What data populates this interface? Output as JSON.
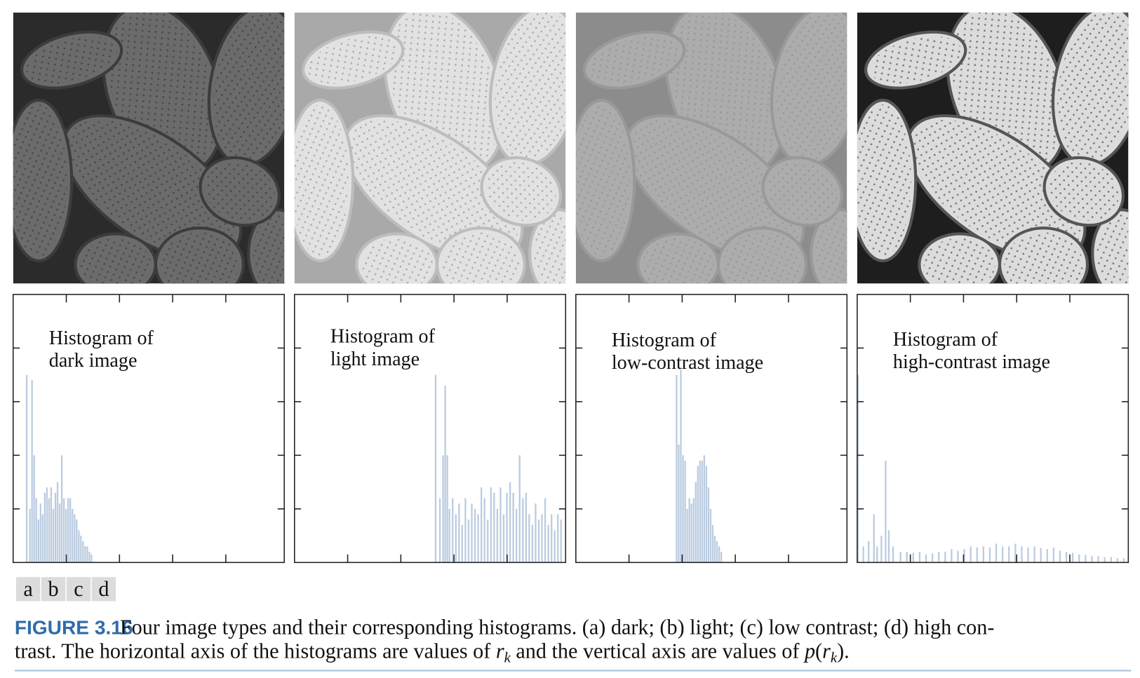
{
  "figure": {
    "panels": [
      {
        "label": "a",
        "title_lines": [
          "Histogram of",
          "dark image"
        ],
        "histogram": {
          "type": "bar",
          "color": "#b4c7dd",
          "xlim": [
            0,
            255
          ],
          "xticks": [
            50,
            100,
            150,
            200
          ],
          "ylim": [
            0,
            5
          ],
          "yticks": [
            1,
            2,
            3,
            4
          ],
          "x": [
            12,
            15,
            17,
            19,
            21,
            23,
            25,
            27,
            29,
            31,
            33,
            35,
            37,
            39,
            41,
            43,
            45,
            47,
            49,
            51,
            53,
            55,
            57,
            59,
            61,
            63,
            65,
            67,
            69,
            71,
            73
          ],
          "values": [
            3.5,
            1.0,
            3.4,
            2.0,
            1.2,
            0.8,
            1.1,
            0.9,
            1.3,
            1.4,
            1.2,
            1.4,
            1.0,
            1.3,
            1.5,
            1.1,
            2.0,
            1.2,
            1.0,
            1.2,
            1.2,
            1.0,
            0.9,
            0.8,
            0.6,
            0.5,
            0.4,
            0.3,
            0.3,
            0.2,
            0.15
          ]
        }
      },
      {
        "label": "b",
        "title_lines": [
          "Histogram of",
          "light image"
        ],
        "histogram": {
          "type": "bar",
          "color": "#b4c7dd",
          "xlim": [
            0,
            255
          ],
          "xticks": [
            50,
            100,
            150,
            200
          ],
          "ylim": [
            0,
            5
          ],
          "yticks": [
            1,
            2,
            3,
            4
          ],
          "x": [
            132,
            136,
            139,
            141,
            143,
            145,
            148,
            151,
            154,
            157,
            160,
            163,
            166,
            169,
            172,
            175,
            178,
            181,
            184,
            187,
            190,
            193,
            196,
            199,
            202,
            205,
            208,
            211,
            214,
            217,
            220,
            223,
            226,
            229,
            232,
            235,
            238,
            241,
            244,
            247,
            250
          ],
          "values": [
            3.5,
            1.2,
            2.0,
            3.3,
            2.0,
            1.0,
            1.2,
            0.9,
            1.1,
            0.7,
            1.2,
            0.8,
            1.1,
            1.0,
            0.9,
            1.4,
            1.2,
            0.8,
            1.4,
            1.3,
            1.0,
            1.4,
            0.9,
            1.3,
            1.5,
            1.3,
            1.0,
            2.0,
            1.2,
            1.3,
            0.9,
            0.7,
            1.1,
            0.8,
            0.9,
            1.2,
            0.7,
            0.9,
            0.6,
            0.9,
            0.8
          ]
        }
      },
      {
        "label": "c",
        "title_lines": [
          "Histogram of",
          "low-contrast image"
        ],
        "histogram": {
          "type": "bar",
          "color": "#b4c7dd",
          "xlim": [
            0,
            255
          ],
          "xticks": [
            50,
            100,
            150,
            200
          ],
          "ylim": [
            0,
            5
          ],
          "yticks": [
            1,
            2,
            3,
            4
          ],
          "x": [
            94,
            96,
            98,
            100,
            102,
            104,
            106,
            108,
            110,
            112,
            114,
            116,
            118,
            120,
            122,
            124,
            126,
            128,
            130,
            132,
            134,
            136
          ],
          "values": [
            3.5,
            2.2,
            3.6,
            2.0,
            1.9,
            1.0,
            1.2,
            1.1,
            1.2,
            1.5,
            1.8,
            1.9,
            1.9,
            2.0,
            1.8,
            1.4,
            1.0,
            0.7,
            0.5,
            0.4,
            0.3,
            0.2
          ]
        }
      },
      {
        "label": "d",
        "title_lines": [
          "Histogram of",
          "high-contrast image"
        ],
        "histogram": {
          "type": "bar",
          "color": "#b4c7dd",
          "xlim": [
            0,
            255
          ],
          "xticks": [
            50,
            100,
            150,
            200
          ],
          "ylim": [
            0,
            5
          ],
          "yticks": [
            1,
            2,
            3,
            4
          ],
          "x": [
            0,
            5,
            10,
            15,
            18,
            22,
            26,
            29,
            33,
            40,
            46,
            52,
            58,
            64,
            70,
            76,
            82,
            88,
            94,
            100,
            106,
            112,
            118,
            124,
            130,
            136,
            142,
            148,
            154,
            160,
            166,
            172,
            178,
            184,
            190,
            196,
            202,
            208,
            214,
            220,
            226,
            232,
            238,
            244,
            250
          ],
          "values": [
            3.5,
            0.3,
            0.4,
            0.9,
            0.3,
            0.5,
            1.9,
            0.6,
            0.3,
            0.2,
            0.2,
            0.18,
            0.2,
            0.15,
            0.17,
            0.2,
            0.2,
            0.25,
            0.22,
            0.25,
            0.3,
            0.28,
            0.3,
            0.28,
            0.35,
            0.3,
            0.3,
            0.35,
            0.3,
            0.28,
            0.3,
            0.27,
            0.25,
            0.28,
            0.22,
            0.2,
            0.18,
            0.15,
            0.14,
            0.12,
            0.12,
            0.1,
            0.1,
            0.08,
            0.08
          ]
        }
      }
    ],
    "caption": {
      "label": "FIGURE 3.16",
      "line1": "Four image types and their corresponding histograms. (a) dark; (b) light; (c) low contrast; (d) high con-",
      "line2": [
        {
          "text": "trast. The horizontal axis of the histograms are values of ",
          "style": "normal"
        },
        {
          "text": "r",
          "style": "italic"
        },
        {
          "text": "k",
          "style": "sub"
        },
        {
          "text": " and the vertical axis are values of ",
          "style": "normal"
        },
        {
          "text": "p",
          "style": "italic"
        },
        {
          "text": "(",
          "style": "normal"
        },
        {
          "text": "r",
          "style": "italic"
        },
        {
          "text": "k",
          "style": "sub"
        },
        {
          "text": ").",
          "style": "normal"
        }
      ]
    }
  }
}
